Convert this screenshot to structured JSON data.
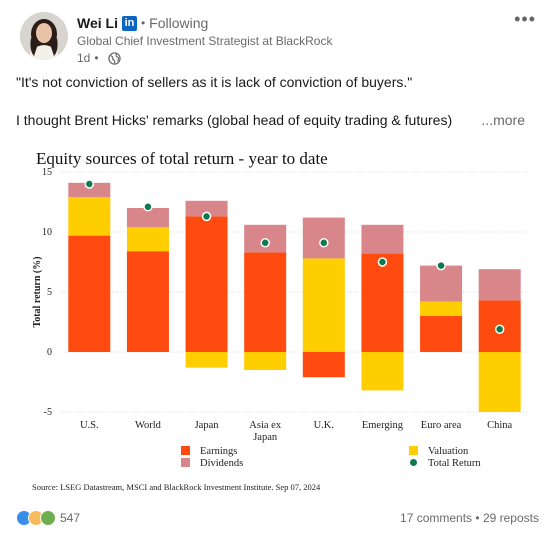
{
  "author": {
    "name": "Wei Li",
    "badge": "in",
    "follow_status": "Following",
    "headline": "Global Chief Investment Strategist at BlackRock",
    "time": "1d"
  },
  "post": {
    "line1": "\"It's not conviction of sellers as it is lack of conviction of buyers.\"",
    "line2": "I thought Brent Hicks' remarks (global head of equity trading & futures)",
    "see_more": "...more"
  },
  "chart_data": {
    "type": "bar",
    "title": "Equity sources of total return - year to date",
    "ylabel": "Total return (%)",
    "ylim": [
      -5,
      15
    ],
    "yticks": [
      "15",
      "10",
      "5",
      "0",
      "-5"
    ],
    "categories": [
      "U.S.",
      "World",
      "Japan",
      "Asia ex Japan",
      "U.K.",
      "Emerging",
      "Euro area",
      "China"
    ],
    "category_labels": [
      [
        "U.S."
      ],
      [
        "World"
      ],
      [
        "Japan"
      ],
      [
        "Asia ex",
        "Japan"
      ],
      [
        "U.K."
      ],
      [
        "Emerging"
      ],
      [
        "Euro area"
      ],
      [
        "China"
      ]
    ],
    "series": [
      {
        "name": "Earnings",
        "color": "#ff4a10",
        "values": [
          9.7,
          8.4,
          11.3,
          8.3,
          -2.1,
          8.2,
          3.0,
          4.3
        ]
      },
      {
        "name": "Valuation",
        "color": "#ffce00",
        "values": [
          3.2,
          2.0,
          -1.3,
          -1.5,
          7.8,
          -3.2,
          1.2,
          -5.0
        ]
      },
      {
        "name": "Dividends",
        "color": "#d9868b",
        "values": [
          1.2,
          1.6,
          1.3,
          2.3,
          3.4,
          2.4,
          3.0,
          2.6
        ]
      }
    ],
    "total_return": {
      "name": "Total Return",
      "color": "#0e7a4e",
      "values": [
        14.0,
        12.1,
        11.3,
        9.1,
        9.1,
        7.5,
        7.2,
        1.9
      ]
    },
    "legend": [
      {
        "label": "Earnings",
        "color": "#ff4a10",
        "shape": "square"
      },
      {
        "label": "Dividends",
        "color": "#d9868b",
        "shape": "square"
      },
      {
        "label": "Valuation",
        "color": "#ffce00",
        "shape": "square"
      },
      {
        "label": "Total Return",
        "color": "#0e7a4e",
        "shape": "dot"
      }
    ],
    "source": "Source: LSEG Datastream, MSCI and BlackRock Investment Institute. Sep 07, 2024"
  },
  "footer": {
    "reaction_count": "547",
    "comments": "17 comments",
    "separator": "•",
    "reposts": "29 reposts"
  }
}
